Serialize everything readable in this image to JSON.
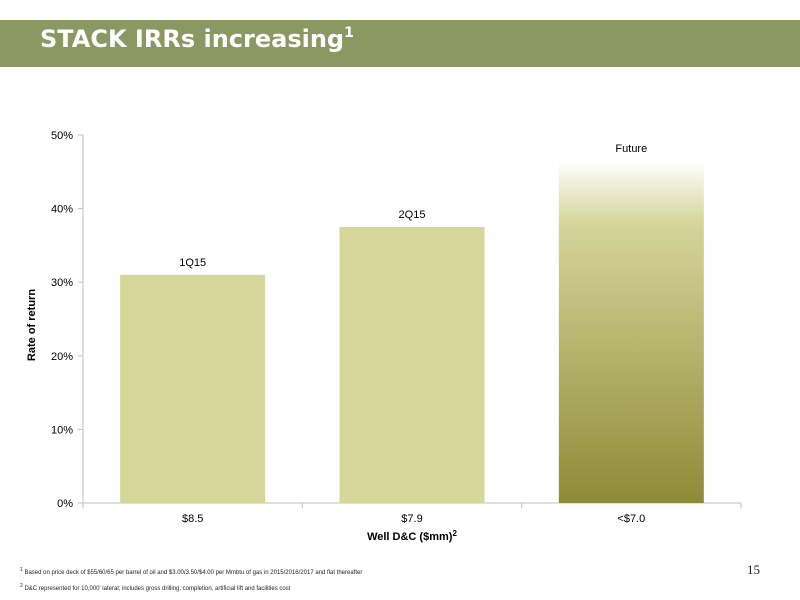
{
  "slide": {
    "title": "STACK IRRs increasing",
    "title_sup": "1",
    "page_number": "15",
    "header_color": "#8b9862"
  },
  "footnotes": [
    {
      "sup": "1",
      "text": "Based on price deck of $55/60/65 per barrel of oil and $3.00/3.50/$4.00  per Mmbtu of gas in 2015/2016/2017 and flat thereafter"
    },
    {
      "sup": "2",
      "text": "D&C represented for 10,000' lateral; includes gross drilling, completion, artificial lift and facilities cost"
    }
  ],
  "chart_data": {
    "type": "bar",
    "categories": [
      "$8.5",
      "$7.9",
      "<$7.0"
    ],
    "bar_labels": [
      "1Q15",
      "2Q15",
      "Future"
    ],
    "values": [
      31,
      37.5,
      46.5
    ],
    "ylim": [
      0,
      50
    ],
    "yticks": [
      0,
      10,
      20,
      30,
      40,
      50
    ],
    "ytick_labels": [
      "0%",
      "10%",
      "20%",
      "30%",
      "40%",
      "50%"
    ],
    "xlabel": "Well D&C ($mm)",
    "xlabel_sup": "2",
    "ylabel": "Rate of return",
    "grid": false,
    "legend": "none",
    "colors": {
      "bar": "#d6d59a",
      "future_top": "#ffffff",
      "future_bottom": "#8e8b37",
      "axis": "#bfbfbf"
    }
  }
}
